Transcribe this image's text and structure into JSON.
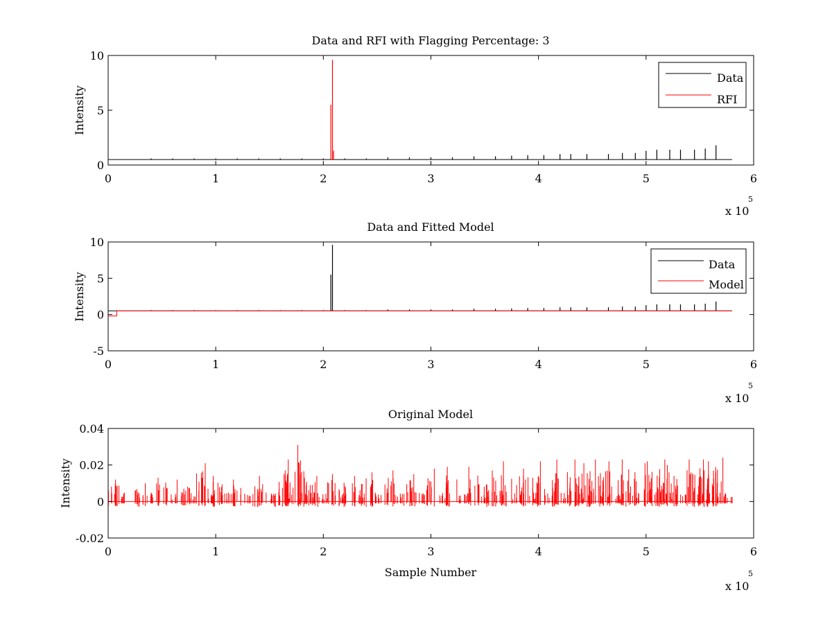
{
  "chart_data": [
    {
      "type": "line",
      "title": "Data and RFI with Flagging Percentage: 3",
      "xlabel": "",
      "ylabel": "Intensity",
      "xlim": [
        0,
        600000
      ],
      "ylim": [
        0,
        10
      ],
      "x_ticks": [
        0,
        1,
        2,
        3,
        4,
        5,
        6
      ],
      "y_ticks": [
        0,
        5,
        10
      ],
      "x_multiplier": "x 10",
      "x_multiplier_exponent": "5",
      "legend": "top-right",
      "grid": false,
      "series": [
        {
          "name": "Data",
          "color": "#000000",
          "baseline": 0.5,
          "spike_x": [
            40000,
            60000,
            80000,
            100000,
            120000,
            140000,
            160000,
            180000,
            200000,
            220000,
            240000,
            260000,
            280000,
            300000,
            320000,
            340000,
            360000,
            375000,
            390000,
            405000,
            420000,
            430000,
            445000,
            465000,
            478000,
            490000,
            500000,
            510000,
            522000,
            532000,
            545000,
            555000,
            565000
          ],
          "spike_y": [
            0.6,
            0.6,
            0.6,
            0.6,
            0.6,
            0.6,
            0.6,
            0.6,
            0.6,
            0.6,
            0.6,
            0.7,
            0.7,
            0.7,
            0.7,
            0.8,
            0.8,
            0.85,
            0.9,
            0.9,
            1.0,
            1.0,
            1.0,
            1.0,
            1.1,
            1.1,
            1.3,
            1.4,
            1.4,
            1.4,
            1.4,
            1.5,
            1.8
          ]
        },
        {
          "name": "RFI",
          "color": "#ff0000",
          "spike_x": [
            207000,
            208500,
            209500
          ],
          "spike_y": [
            5.5,
            9.6,
            1.3
          ]
        }
      ]
    },
    {
      "type": "line",
      "title": "Data and Fitted Model",
      "xlabel": "",
      "ylabel": "Intensity",
      "xlim": [
        0,
        600000
      ],
      "ylim": [
        -5,
        10
      ],
      "x_ticks": [
        0,
        1,
        2,
        3,
        4,
        5,
        6
      ],
      "y_ticks": [
        -5,
        0,
        5,
        10
      ],
      "x_multiplier": "x 10",
      "x_multiplier_exponent": "5",
      "legend": "top-right",
      "grid": false,
      "series": [
        {
          "name": "Data",
          "color": "#000000",
          "baseline": 0.5,
          "spike_x": [
            207000,
            208500,
            40000,
            60000,
            80000,
            100000,
            120000,
            140000,
            160000,
            180000,
            200000,
            220000,
            240000,
            260000,
            280000,
            300000,
            320000,
            340000,
            360000,
            375000,
            390000,
            405000,
            420000,
            430000,
            445000,
            465000,
            478000,
            490000,
            500000,
            510000,
            522000,
            532000,
            545000,
            555000,
            565000
          ],
          "spike_y": [
            5.5,
            9.6,
            0.6,
            0.6,
            0.6,
            0.6,
            0.6,
            0.6,
            0.6,
            0.6,
            0.6,
            0.6,
            0.6,
            0.7,
            0.7,
            0.7,
            0.7,
            0.8,
            0.8,
            0.85,
            0.9,
            0.9,
            1.0,
            1.0,
            1.0,
            1.0,
            1.1,
            1.1,
            1.3,
            1.4,
            1.4,
            1.4,
            1.4,
            1.5,
            1.8
          ]
        },
        {
          "name": "Model",
          "color": "#ff0000",
          "baseline": 0.5,
          "dip_x": [
            0,
            8000
          ],
          "dip_y": -0.2
        }
      ]
    },
    {
      "type": "line",
      "title": "Original Model",
      "xlabel": "Sample Number",
      "ylabel": "Intensity",
      "xlim": [
        0,
        600000
      ],
      "ylim": [
        -0.02,
        0.04
      ],
      "x_ticks": [
        0,
        1,
        2,
        3,
        4,
        5,
        6
      ],
      "y_ticks": [
        -0.02,
        0,
        0.02,
        0.04
      ],
      "y_tick_labels": [
        "-0.02",
        "0",
        "0.02",
        "0.04"
      ],
      "x_multiplier": "x 10",
      "x_multiplier_exponent": "5",
      "legend": "none",
      "grid": false,
      "series": [
        {
          "color": "#ff0000",
          "x_end": 580000,
          "peak_x": [
            5000,
            30000,
            50000,
            70000,
            87000,
            100000,
            120000,
            140000,
            160000,
            170000,
            178000,
            190000,
            210000,
            225000,
            240000,
            260000,
            280000,
            300000,
            320000,
            340000,
            355000,
            370000,
            385000,
            400000,
            415000,
            430000,
            440000,
            452000,
            465000,
            480000,
            495000,
            505000,
            515000,
            525000,
            540000,
            550000,
            560000,
            567000
          ],
          "peak_y": [
            0.012,
            0.01,
            0.013,
            0.012,
            0.021,
            0.014,
            0.012,
            0.014,
            0.015,
            0.023,
            0.031,
            0.014,
            0.015,
            0.014,
            0.016,
            0.017,
            0.015,
            0.018,
            0.019,
            0.019,
            0.017,
            0.022,
            0.018,
            0.022,
            0.023,
            0.023,
            0.021,
            0.023,
            0.022,
            0.023,
            0.021,
            0.022,
            0.023,
            0.02,
            0.023,
            0.023,
            0.022,
            0.024
          ]
        }
      ]
    }
  ]
}
